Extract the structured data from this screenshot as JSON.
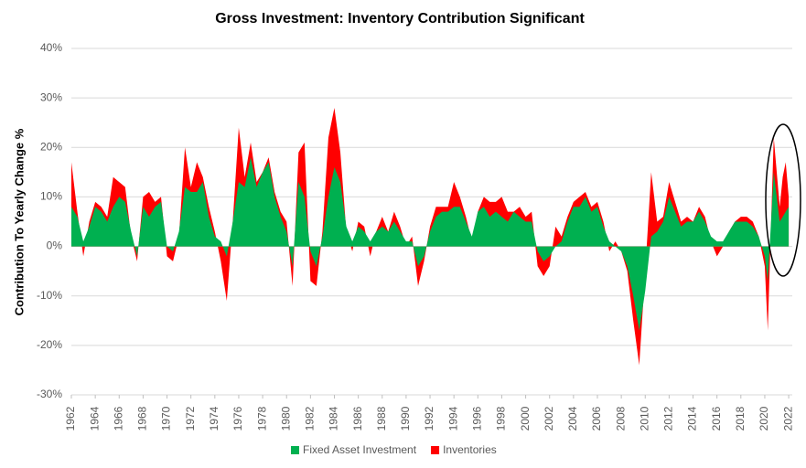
{
  "chart_data": {
    "type": "area",
    "title": "Gross Investment: Inventory Contribution Significant",
    "y_label": "Contribution To Yearly Change %",
    "x": [
      1962,
      1962.5,
      1963,
      1963.5,
      1964,
      1964.5,
      1965,
      1965.5,
      1966,
      1966.5,
      1967,
      1967.5,
      1968,
      1968.5,
      1969,
      1969.5,
      1970,
      1970.5,
      1971,
      1971.5,
      1972,
      1972.5,
      1973,
      1973.5,
      1974,
      1974.5,
      1975,
      1975.5,
      1976,
      1976.5,
      1977,
      1977.5,
      1978,
      1978.5,
      1979,
      1979.5,
      1980,
      1980.5,
      1981,
      1981.5,
      1982,
      1982.5,
      1983,
      1983.5,
      1984,
      1984.5,
      1985,
      1985.5,
      1986,
      1986.5,
      1987,
      1987.5,
      1988,
      1988.5,
      1989,
      1989.5,
      1990,
      1990.5,
      1991,
      1991.5,
      1992,
      1992.5,
      1993,
      1993.5,
      1994,
      1994.5,
      1995,
      1995.5,
      1996,
      1996.5,
      1997,
      1997.5,
      1998,
      1998.5,
      1999,
      1999.5,
      2000,
      2000.5,
      2001,
      2001.5,
      2002,
      2002.5,
      2003,
      2003.5,
      2004,
      2004.5,
      2005,
      2005.5,
      2006,
      2006.5,
      2007,
      2007.5,
      2008,
      2008.5,
      2009,
      2009.5,
      2010,
      2010.5,
      2011,
      2011.5,
      2012,
      2012.5,
      2013,
      2013.5,
      2014,
      2014.5,
      2015,
      2015.5,
      2016,
      2016.5,
      2017,
      2017.5,
      2018,
      2018.5,
      2019,
      2019.5,
      2020,
      2020.25,
      2020.75,
      2021.25,
      2021.5,
      2021.75,
      2022
    ],
    "series": [
      {
        "name": "Inventories",
        "color": "#ff0000",
        "values": [
          17,
          7,
          -2,
          5,
          9,
          8,
          6,
          14,
          13,
          12,
          2,
          -3,
          10,
          11,
          9,
          10,
          -2,
          -3,
          2,
          20,
          12,
          17,
          14,
          8,
          3,
          -3,
          -11,
          5,
          24,
          14,
          21,
          13,
          15,
          18,
          11,
          7,
          5,
          -8,
          19,
          21,
          -7,
          -8,
          3,
          22,
          28,
          19,
          3,
          -1,
          5,
          4,
          -2,
          3,
          6,
          3,
          7,
          4,
          0,
          2,
          -8,
          -3,
          4,
          8,
          8,
          8,
          13,
          10,
          6,
          1,
          7,
          10,
          9,
          9,
          10,
          7,
          7,
          8,
          6,
          7,
          -4,
          -6,
          -4,
          4,
          2,
          6,
          9,
          10,
          11,
          8,
          9,
          5,
          -1,
          1,
          -1,
          -5,
          -15,
          -24,
          -5,
          15,
          5,
          6,
          13,
          9,
          5,
          6,
          5,
          8,
          6,
          1,
          -2,
          0,
          3,
          5,
          6,
          6,
          5,
          2,
          -4,
          -17,
          22,
          8,
          14,
          17,
          10
        ]
      },
      {
        "name": "Fixed Asset Investment",
        "color": "#00b050",
        "values": [
          8,
          6,
          1,
          4,
          8,
          7,
          5,
          8,
          10,
          9,
          3,
          -2,
          8,
          6,
          8,
          9,
          0,
          -1,
          3,
          12,
          11,
          11,
          13,
          6,
          2,
          1,
          -2,
          5,
          13,
          12,
          18,
          12,
          15,
          17,
          10,
          6,
          3,
          -4,
          13,
          10,
          -1,
          -4,
          2,
          10,
          16,
          13,
          4,
          1,
          4,
          3,
          1,
          3,
          4,
          3,
          5,
          3,
          1,
          1,
          -4,
          -2,
          3,
          6,
          7,
          7,
          8,
          8,
          5,
          2,
          7,
          8,
          6,
          7,
          6,
          5,
          7,
          6,
          5,
          5,
          -1,
          -3,
          -2,
          0,
          1,
          5,
          8,
          8,
          10,
          7,
          8,
          4,
          1,
          0,
          -1,
          -4,
          -10,
          -17,
          -9,
          2,
          3,
          5,
          10,
          7,
          4,
          5,
          5,
          7,
          5,
          2,
          1,
          1,
          3,
          5,
          5,
          5,
          4,
          2,
          -2,
          -7,
          15,
          5,
          6,
          7,
          8
        ]
      }
    ],
    "xlim": [
      1962,
      2022.3
    ],
    "xticks": [
      1962,
      1964,
      1966,
      1968,
      1970,
      1972,
      1974,
      1976,
      1978,
      1980,
      1982,
      1984,
      1986,
      1988,
      1990,
      1992,
      1994,
      1996,
      1998,
      2000,
      2002,
      2004,
      2006,
      2008,
      2010,
      2012,
      2014,
      2016,
      2018,
      2020,
      2022
    ],
    "ylim": [
      -30,
      40
    ],
    "yticks": [
      {
        "value": -30,
        "label": "-30%"
      },
      {
        "value": -20,
        "label": "-20%"
      },
      {
        "value": -10,
        "label": "-10%"
      },
      {
        "value": 0,
        "label": "0%"
      },
      {
        "value": 10,
        "label": "10%"
      },
      {
        "value": 20,
        "label": "20%"
      },
      {
        "value": 30,
        "label": "30%"
      },
      {
        "value": 40,
        "label": "40%"
      }
    ],
    "grid": true,
    "legend": "bottom"
  }
}
